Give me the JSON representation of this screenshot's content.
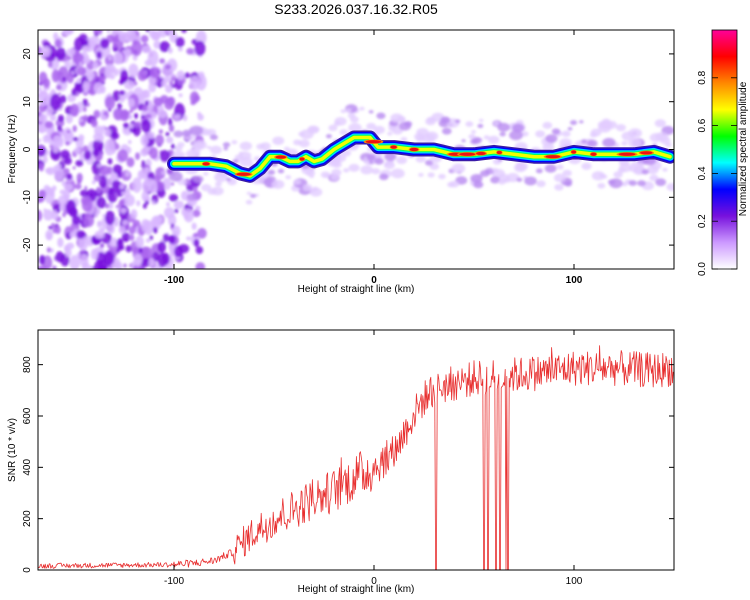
{
  "title": "S233.2026.037.16.32.R05",
  "chart_data": [
    {
      "type": "heatmap",
      "name": "spectrogram",
      "xlabel": "Height of straight line (km)",
      "ylabel": "Frequency (Hz)",
      "xlim": [
        -168,
        150
      ],
      "ylim": [
        -25,
        25
      ],
      "xticks": [
        -100,
        0,
        100
      ],
      "yticks": [
        -20,
        -10,
        0,
        10,
        20
      ],
      "noise_region_x": [
        -168,
        -100
      ],
      "signal_start_x": -100,
      "ridge": {
        "x": [
          -100,
          -90,
          -82,
          -74,
          -67,
          -62,
          -57,
          -52,
          -47,
          -42,
          -38,
          -34,
          -30,
          -26,
          -20,
          -14,
          -10,
          -6,
          -2,
          2,
          10,
          20,
          30,
          40,
          50,
          60,
          70,
          80,
          90,
          100,
          110,
          120,
          130,
          140,
          148
        ],
        "y": [
          -3,
          -3,
          -3,
          -3.5,
          -5,
          -5.5,
          -4,
          -1.5,
          -1.5,
          -2.5,
          -2.5,
          -1.5,
          -2.5,
          -2,
          0,
          1.5,
          2.5,
          2.5,
          2.5,
          0.5,
          0.5,
          0,
          0,
          -1,
          -1,
          -0.5,
          -1,
          -1.5,
          -1.5,
          -0.5,
          -1,
          -1,
          -1,
          -0.5,
          -1.5
        ]
      },
      "colorbar": {
        "label": "Normalized spectral amplitude",
        "range": [
          0,
          1
        ],
        "ticks": [
          0.0,
          0.2,
          0.4,
          0.6,
          0.8
        ],
        "tick_labels": [
          "0.0",
          "0.2",
          "0.4",
          "0.6",
          "0.8"
        ],
        "colors": [
          "#ffffff",
          "#cc99ff",
          "#7711dd",
          "#0000ff",
          "#00ffff",
          "#00ff00",
          "#ffff00",
          "#ff8800",
          "#ff0000",
          "#ff0099"
        ]
      }
    },
    {
      "type": "line",
      "name": "snr",
      "xlabel": "Height of straight line (km)",
      "ylabel": "SNR (10 * v/v)",
      "xlim": [
        -168,
        150
      ],
      "ylim": [
        0,
        935
      ],
      "xticks": [
        -100,
        0,
        100
      ],
      "yticks": [
        0,
        200,
        400,
        600,
        800
      ],
      "color": "#e83030",
      "trend": {
        "x": [
          -168,
          -100,
          -90,
          -80,
          -70,
          -60,
          -50,
          -40,
          -30,
          -20,
          -10,
          0,
          10,
          20,
          25,
          30,
          40,
          50,
          60,
          80,
          100,
          120,
          140,
          150
        ],
        "y": [
          15,
          20,
          25,
          35,
          70,
          140,
          190,
          230,
          270,
          300,
          350,
          390,
          450,
          600,
          660,
          700,
          720,
          740,
          745,
          760,
          780,
          780,
          770,
          780
        ]
      },
      "dropouts_x": [
        31,
        55,
        57,
        61,
        63,
        66,
        67
      ]
    }
  ]
}
